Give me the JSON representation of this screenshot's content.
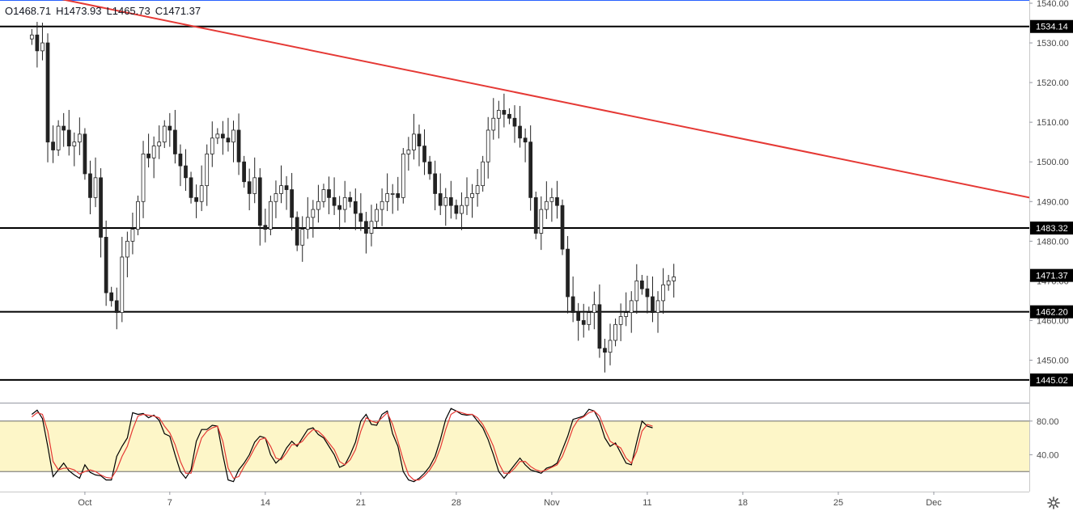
{
  "header": {
    "open": "O1468.71",
    "high": "H1473.93",
    "low": "L1465.73",
    "close": "C1471.37"
  },
  "settings_icon": "gear-icon",
  "colors": {
    "up": "#26a69a",
    "down": "#ef5350",
    "trendline": "#e53935",
    "level": "#000000",
    "stoch_k": "#000000",
    "stoch_d": "#e53935",
    "stoch_band": "#fdf6c8"
  },
  "chart_data": {
    "type": "candlestick",
    "ylim": [
      1444,
      1540
    ],
    "y_ticks": [
      "1450.00",
      "1460.00",
      "1470.00",
      "1480.00",
      "1490.00",
      "1500.00",
      "1510.00",
      "1520.00",
      "1530.00",
      "1540.00"
    ],
    "x_tick_labels": [
      "Oct",
      "7",
      "14",
      "21",
      "28",
      "Nov",
      "11",
      "18",
      "25",
      "Dec"
    ],
    "x_tick_index": [
      10,
      26,
      44,
      62,
      80,
      98,
      116,
      134,
      152,
      170
    ],
    "x_range": [
      -6,
      188
    ],
    "grid": false,
    "horizontal_levels": [
      {
        "value": 1534.14,
        "label": "1534.14"
      },
      {
        "value": 1483.32,
        "label": "1483.32"
      },
      {
        "value": 1462.2,
        "label": "1462.20"
      },
      {
        "value": 1445.02,
        "label": "1445.02"
      }
    ],
    "last_price": {
      "value": 1471.37,
      "label": "1471.37"
    },
    "trendline": {
      "points": [
        [
          2,
          1542
        ],
        [
          188,
          1491
        ]
      ]
    },
    "closes": [
      1532,
      1528,
      1530,
      1505,
      1503,
      1509,
      1508,
      1504,
      1505,
      1507,
      1497,
      1491,
      1496,
      1481,
      1467,
      1465,
      1462,
      1476,
      1480,
      1483,
      1490,
      1502,
      1501,
      1504,
      1505,
      1509,
      1508,
      1502,
      1499,
      1496,
      1491,
      1490,
      1494,
      1502,
      1506,
      1507,
      1506,
      1505,
      1508,
      1500,
      1495,
      1492,
      1496,
      1484,
      1483,
      1490,
      1492,
      1494,
      1493,
      1486,
      1479,
      1483,
      1486,
      1488,
      1490,
      1493,
      1491,
      1489,
      1488,
      1491,
      1490,
      1487,
      1485,
      1482,
      1485,
      1488,
      1490,
      1492,
      1492,
      1491,
      1502,
      1503,
      1507,
      1504,
      1500,
      1497,
      1492,
      1489,
      1491,
      1489,
      1487,
      1489,
      1491,
      1492,
      1494,
      1500,
      1508,
      1511,
      1513,
      1512,
      1511,
      1509,
      1506,
      1505,
      1491,
      1482,
      1488,
      1490,
      1491,
      1489,
      1478,
      1466,
      1462,
      1460,
      1459,
      1462,
      1464,
      1453,
      1452,
      1455,
      1459,
      1461,
      1462,
      1465,
      1470,
      1468,
      1466,
      1462,
      1465,
      1469,
      1470,
      1471
    ],
    "stochastic": {
      "type": "line",
      "ylim": [
        0,
        100
      ],
      "y_ticks": [
        "40.00",
        "80.00"
      ],
      "band": [
        20,
        80
      ],
      "series": [
        {
          "key": "k",
          "values": [
            88,
            93,
            83,
            50,
            14,
            22,
            30,
            21,
            16,
            12,
            28,
            19,
            16,
            15,
            10,
            10,
            38,
            50,
            60,
            90,
            88,
            89,
            84,
            87,
            81,
            65,
            62,
            40,
            20,
            12,
            22,
            56,
            70,
            70,
            75,
            74,
            40,
            10,
            8,
            22,
            30,
            40,
            55,
            62,
            60,
            40,
            30,
            36,
            48,
            56,
            50,
            60,
            70,
            72,
            64,
            60,
            50,
            40,
            25,
            28,
            40,
            55,
            80,
            88,
            76,
            75,
            88,
            92,
            65,
            50,
            20,
            10,
            8,
            12,
            18,
            26,
            38,
            58,
            82,
            95,
            92,
            88,
            87,
            88,
            80,
            72,
            58,
            40,
            20,
            12,
            20,
            28,
            36,
            28,
            22,
            20,
            18,
            24,
            26,
            30,
            46,
            62,
            82,
            84,
            86,
            94,
            92,
            80,
            60,
            50,
            54,
            42,
            30,
            28,
            55,
            80,
            74,
            72
          ]
        },
        {
          "key": "d",
          "values": [
            85,
            90,
            88,
            68,
            32,
            22,
            24,
            24,
            22,
            17,
            20,
            22,
            20,
            16,
            13,
            12,
            22,
            38,
            50,
            70,
            86,
            88,
            87,
            86,
            84,
            74,
            66,
            52,
            32,
            18,
            18,
            40,
            60,
            68,
            72,
            74,
            56,
            24,
            12,
            14,
            26,
            36,
            48,
            58,
            60,
            50,
            36,
            34,
            42,
            52,
            52,
            56,
            64,
            70,
            68,
            62,
            54,
            46,
            32,
            28,
            34,
            46,
            68,
            84,
            80,
            78,
            84,
            90,
            76,
            56,
            34,
            16,
            10,
            10,
            15,
            22,
            32,
            48,
            70,
            88,
            92,
            90,
            88,
            88,
            84,
            76,
            64,
            50,
            30,
            18,
            18,
            24,
            32,
            32,
            26,
            22,
            20,
            22,
            25,
            28,
            38,
            54,
            72,
            82,
            85,
            90,
            92,
            86,
            70,
            56,
            52,
            48,
            36,
            30,
            44,
            68,
            76,
            74
          ]
        }
      ]
    }
  }
}
